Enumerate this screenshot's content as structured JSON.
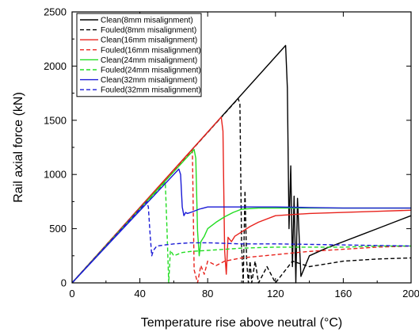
{
  "chart_data": {
    "type": "line",
    "title": "",
    "xlabel": "Temperature rise above neutral (°C)",
    "ylabel": "Rail axial force (kN)",
    "xlim": [
      0,
      200
    ],
    "ylim": [
      0,
      2500
    ],
    "xticks": [
      0,
      40,
      80,
      120,
      160,
      200
    ],
    "yticks": [
      0,
      500,
      1000,
      1500,
      2000,
      2500
    ],
    "grid": false,
    "legend_position": "top-left",
    "series": [
      {
        "name": "Clean(8mm misalignment)",
        "color": "#000000",
        "dash": "solid",
        "x": [
          0,
          126,
          127,
          128,
          129,
          130,
          131,
          132,
          133,
          135,
          140,
          150,
          160,
          170,
          180,
          190,
          200
        ],
        "y": [
          0,
          2190,
          1800,
          500,
          1080,
          150,
          800,
          0,
          780,
          60,
          250,
          320,
          380,
          440,
          500,
          560,
          620
        ]
      },
      {
        "name": "Fouled(8mm misalignment)",
        "color": "#000000",
        "dash": "dashed",
        "x": [
          0,
          98,
          99,
          100,
          101,
          102,
          103,
          104,
          105,
          106,
          108,
          110,
          115,
          120,
          130,
          140,
          160,
          180,
          200
        ],
        "y": [
          0,
          1700,
          1650,
          350,
          0,
          850,
          200,
          0,
          200,
          0,
          200,
          0,
          150,
          0,
          200,
          150,
          200,
          220,
          230
        ]
      },
      {
        "name": "Clean(16mm misalignment)",
        "color": "#e8221c",
        "dash": "solid",
        "x": [
          0,
          88,
          89,
          90,
          91,
          92,
          94,
          96,
          100,
          105,
          110,
          120,
          140,
          160,
          180,
          200
        ],
        "y": [
          0,
          1530,
          1400,
          300,
          80,
          420,
          380,
          430,
          470,
          520,
          560,
          620,
          640,
          650,
          660,
          670
        ]
      },
      {
        "name": "Fouled(16mm misalignment)",
        "color": "#e8221c",
        "dash": "dashed",
        "x": [
          0,
          71,
          72,
          74,
          76,
          78,
          80,
          85,
          90,
          100,
          120,
          140,
          160,
          180,
          200
        ],
        "y": [
          0,
          1220,
          120,
          0,
          160,
          80,
          200,
          160,
          200,
          230,
          260,
          290,
          310,
          330,
          340
        ]
      },
      {
        "name": "Clean(24mm misalignment)",
        "color": "#22dd22",
        "dash": "solid",
        "x": [
          0,
          72,
          73,
          74,
          75,
          76,
          78,
          80,
          85,
          90,
          95,
          100,
          110,
          120,
          140,
          160,
          180,
          200
        ],
        "y": [
          0,
          1230,
          1150,
          480,
          250,
          380,
          430,
          500,
          560,
          610,
          650,
          680,
          690,
          690,
          690,
          690,
          690,
          690
        ]
      },
      {
        "name": "Fouled(24mm misalignment)",
        "color": "#22dd22",
        "dash": "dashed",
        "x": [
          0,
          55,
          56,
          57,
          58,
          60,
          65,
          70,
          80,
          100,
          120,
          140,
          160,
          180,
          200
        ],
        "y": [
          0,
          930,
          500,
          0,
          300,
          250,
          280,
          290,
          300,
          320,
          330,
          330,
          330,
          340,
          340
        ]
      },
      {
        "name": "Clean(32mm misalignment)",
        "color": "#1a1ad6",
        "dash": "solid",
        "x": [
          0,
          63,
          64,
          65,
          66,
          67,
          68,
          70,
          75,
          80,
          90,
          100,
          120,
          140,
          160,
          180,
          200
        ],
        "y": [
          0,
          1050,
          1000,
          700,
          620,
          650,
          640,
          650,
          680,
          700,
          700,
          700,
          700,
          695,
          690,
          690,
          690
        ]
      },
      {
        "name": "Fouled(32mm misalignment)",
        "color": "#1a1ad6",
        "dash": "dashed",
        "x": [
          0,
          44,
          45,
          46,
          47,
          48,
          50,
          55,
          60,
          70,
          80,
          100,
          120,
          140,
          160,
          180,
          200
        ],
        "y": [
          0,
          750,
          700,
          460,
          250,
          300,
          340,
          350,
          360,
          370,
          370,
          360,
          360,
          355,
          350,
          345,
          340
        ]
      }
    ]
  }
}
